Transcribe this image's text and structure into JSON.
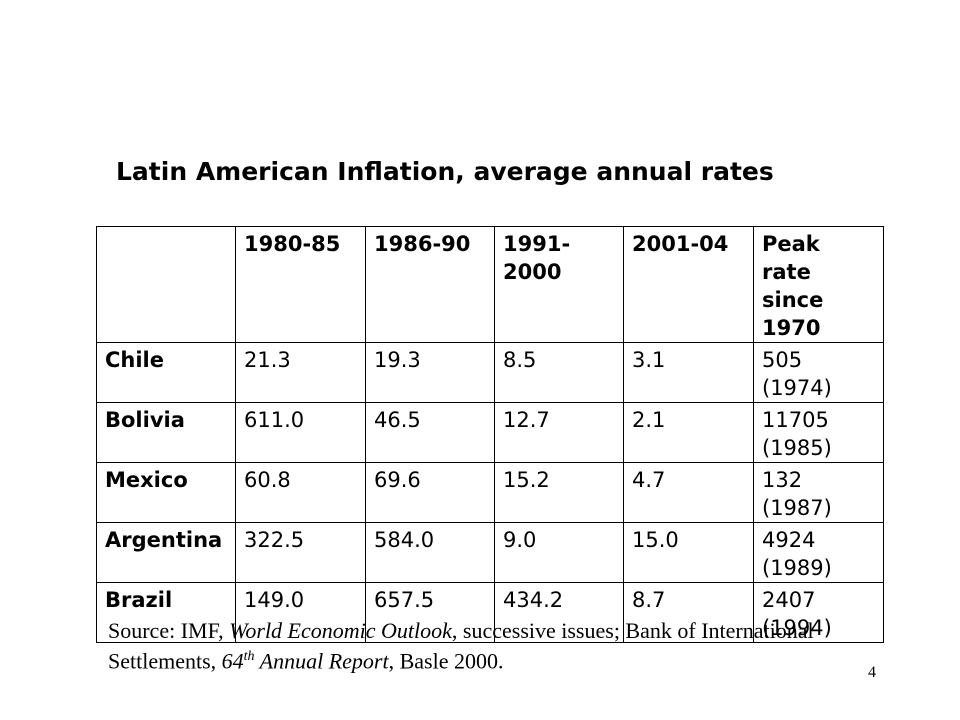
{
  "title": "Latin American Inflation, average annual rates",
  "table": {
    "headers": [
      "",
      "1980-85",
      "1986-90",
      "1991-\n2000",
      "2001-04",
      "Peak rate since 1970"
    ],
    "rows": [
      {
        "country": "Chile",
        "v1980_85": "21.3",
        "v1986_90": "19.3",
        "v1991_2000": "8.5",
        "v2001_04": "3.1",
        "peak": "505",
        "peak_year": "(1974)"
      },
      {
        "country": "Bolivia",
        "v1980_85": "611.0",
        "v1986_90": "46.5",
        "v1991_2000": "12.7",
        "v2001_04": "2.1",
        "peak": "11705",
        "peak_year": "(1985)"
      },
      {
        "country": "Mexico",
        "v1980_85": "60.8",
        "v1986_90": "69.6",
        "v1991_2000": "15.2",
        "v2001_04": "4.7",
        "peak": "132",
        "peak_year": "(1987)"
      },
      {
        "country": "Argentina",
        "v1980_85": "322.5",
        "v1986_90": "584.0",
        "v1991_2000": "9.0",
        "v2001_04": "15.0",
        "peak": "4924",
        "peak_year": "(1989)"
      },
      {
        "country": "Brazil",
        "v1980_85": "149.0",
        "v1986_90": "657.5",
        "v1991_2000": "434.2",
        "v2001_04": "8.7",
        "peak": "2407",
        "peak_year": "(1994)"
      }
    ]
  },
  "source": {
    "prefix": "Source:  IMF, ",
    "publication": "World Economic Outlook",
    "middle": ", successive issues; Bank of International Settlements, ",
    "edition_num": "64",
    "edition_sup": "th",
    "report": " Annual Report",
    "suffix": ", Basle 2000."
  },
  "page_number": "4"
}
